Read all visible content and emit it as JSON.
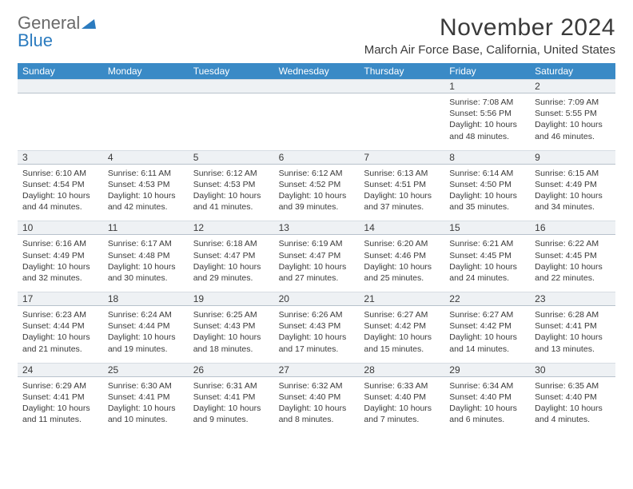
{
  "logo": {
    "part1": "General",
    "part2": "Blue"
  },
  "title": "November 2024",
  "location": "March Air Force Base, California, United States",
  "weekdays": [
    "Sunday",
    "Monday",
    "Tuesday",
    "Wednesday",
    "Thursday",
    "Friday",
    "Saturday"
  ],
  "colors": {
    "header_bg": "#3a8ac6",
    "header_text": "#ffffff",
    "daynum_bg": "#eef1f4",
    "border": "#d7dde3",
    "logo_blue": "#2b7bbf",
    "logo_gray": "#6a6a6a",
    "text": "#3a3a3a"
  },
  "weeks": [
    [
      {
        "n": "",
        "lines": []
      },
      {
        "n": "",
        "lines": []
      },
      {
        "n": "",
        "lines": []
      },
      {
        "n": "",
        "lines": []
      },
      {
        "n": "",
        "lines": []
      },
      {
        "n": "1",
        "lines": [
          "Sunrise: 7:08 AM",
          "Sunset: 5:56 PM",
          "Daylight: 10 hours and 48 minutes."
        ]
      },
      {
        "n": "2",
        "lines": [
          "Sunrise: 7:09 AM",
          "Sunset: 5:55 PM",
          "Daylight: 10 hours and 46 minutes."
        ]
      }
    ],
    [
      {
        "n": "3",
        "lines": [
          "Sunrise: 6:10 AM",
          "Sunset: 4:54 PM",
          "Daylight: 10 hours and 44 minutes."
        ]
      },
      {
        "n": "4",
        "lines": [
          "Sunrise: 6:11 AM",
          "Sunset: 4:53 PM",
          "Daylight: 10 hours and 42 minutes."
        ]
      },
      {
        "n": "5",
        "lines": [
          "Sunrise: 6:12 AM",
          "Sunset: 4:53 PM",
          "Daylight: 10 hours and 41 minutes."
        ]
      },
      {
        "n": "6",
        "lines": [
          "Sunrise: 6:12 AM",
          "Sunset: 4:52 PM",
          "Daylight: 10 hours and 39 minutes."
        ]
      },
      {
        "n": "7",
        "lines": [
          "Sunrise: 6:13 AM",
          "Sunset: 4:51 PM",
          "Daylight: 10 hours and 37 minutes."
        ]
      },
      {
        "n": "8",
        "lines": [
          "Sunrise: 6:14 AM",
          "Sunset: 4:50 PM",
          "Daylight: 10 hours and 35 minutes."
        ]
      },
      {
        "n": "9",
        "lines": [
          "Sunrise: 6:15 AM",
          "Sunset: 4:49 PM",
          "Daylight: 10 hours and 34 minutes."
        ]
      }
    ],
    [
      {
        "n": "10",
        "lines": [
          "Sunrise: 6:16 AM",
          "Sunset: 4:49 PM",
          "Daylight: 10 hours and 32 minutes."
        ]
      },
      {
        "n": "11",
        "lines": [
          "Sunrise: 6:17 AM",
          "Sunset: 4:48 PM",
          "Daylight: 10 hours and 30 minutes."
        ]
      },
      {
        "n": "12",
        "lines": [
          "Sunrise: 6:18 AM",
          "Sunset: 4:47 PM",
          "Daylight: 10 hours and 29 minutes."
        ]
      },
      {
        "n": "13",
        "lines": [
          "Sunrise: 6:19 AM",
          "Sunset: 4:47 PM",
          "Daylight: 10 hours and 27 minutes."
        ]
      },
      {
        "n": "14",
        "lines": [
          "Sunrise: 6:20 AM",
          "Sunset: 4:46 PM",
          "Daylight: 10 hours and 25 minutes."
        ]
      },
      {
        "n": "15",
        "lines": [
          "Sunrise: 6:21 AM",
          "Sunset: 4:45 PM",
          "Daylight: 10 hours and 24 minutes."
        ]
      },
      {
        "n": "16",
        "lines": [
          "Sunrise: 6:22 AM",
          "Sunset: 4:45 PM",
          "Daylight: 10 hours and 22 minutes."
        ]
      }
    ],
    [
      {
        "n": "17",
        "lines": [
          "Sunrise: 6:23 AM",
          "Sunset: 4:44 PM",
          "Daylight: 10 hours and 21 minutes."
        ]
      },
      {
        "n": "18",
        "lines": [
          "Sunrise: 6:24 AM",
          "Sunset: 4:44 PM",
          "Daylight: 10 hours and 19 minutes."
        ]
      },
      {
        "n": "19",
        "lines": [
          "Sunrise: 6:25 AM",
          "Sunset: 4:43 PM",
          "Daylight: 10 hours and 18 minutes."
        ]
      },
      {
        "n": "20",
        "lines": [
          "Sunrise: 6:26 AM",
          "Sunset: 4:43 PM",
          "Daylight: 10 hours and 17 minutes."
        ]
      },
      {
        "n": "21",
        "lines": [
          "Sunrise: 6:27 AM",
          "Sunset: 4:42 PM",
          "Daylight: 10 hours and 15 minutes."
        ]
      },
      {
        "n": "22",
        "lines": [
          "Sunrise: 6:27 AM",
          "Sunset: 4:42 PM",
          "Daylight: 10 hours and 14 minutes."
        ]
      },
      {
        "n": "23",
        "lines": [
          "Sunrise: 6:28 AM",
          "Sunset: 4:41 PM",
          "Daylight: 10 hours and 13 minutes."
        ]
      }
    ],
    [
      {
        "n": "24",
        "lines": [
          "Sunrise: 6:29 AM",
          "Sunset: 4:41 PM",
          "Daylight: 10 hours and 11 minutes."
        ]
      },
      {
        "n": "25",
        "lines": [
          "Sunrise: 6:30 AM",
          "Sunset: 4:41 PM",
          "Daylight: 10 hours and 10 minutes."
        ]
      },
      {
        "n": "26",
        "lines": [
          "Sunrise: 6:31 AM",
          "Sunset: 4:41 PM",
          "Daylight: 10 hours and 9 minutes."
        ]
      },
      {
        "n": "27",
        "lines": [
          "Sunrise: 6:32 AM",
          "Sunset: 4:40 PM",
          "Daylight: 10 hours and 8 minutes."
        ]
      },
      {
        "n": "28",
        "lines": [
          "Sunrise: 6:33 AM",
          "Sunset: 4:40 PM",
          "Daylight: 10 hours and 7 minutes."
        ]
      },
      {
        "n": "29",
        "lines": [
          "Sunrise: 6:34 AM",
          "Sunset: 4:40 PM",
          "Daylight: 10 hours and 6 minutes."
        ]
      },
      {
        "n": "30",
        "lines": [
          "Sunrise: 6:35 AM",
          "Sunset: 4:40 PM",
          "Daylight: 10 hours and 4 minutes."
        ]
      }
    ]
  ]
}
